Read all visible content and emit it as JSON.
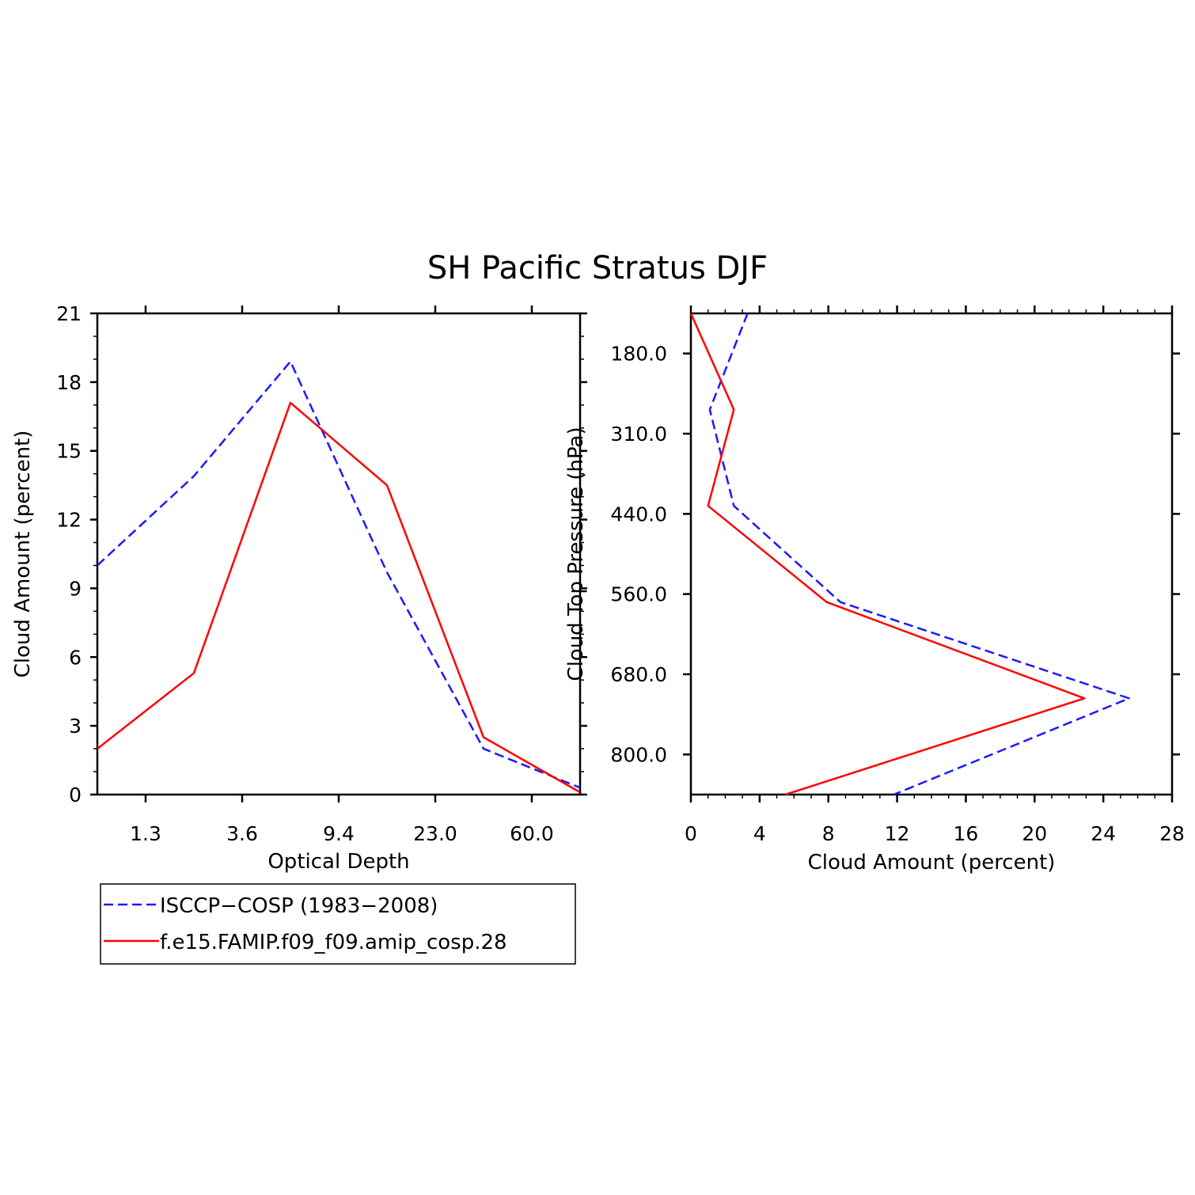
{
  "title": "SH Pacific Stratus DJF",
  "colors": {
    "obs": "#1a1aff",
    "model": "#ff0000",
    "axis": "#000000"
  },
  "chart_data": [
    {
      "type": "line",
      "xlabel": "Optical Depth",
      "ylabel": "Cloud Amount (percent)",
      "x_tick_labels": [
        "1.3",
        "3.6",
        "9.4",
        "23.0",
        "60.0"
      ],
      "ylim": [
        0,
        21
      ],
      "y_ticks": [
        "0",
        "3",
        "6",
        "9",
        "12",
        "15",
        "18",
        "21"
      ],
      "series": [
        {
          "name": "ISCCP-COSP (1983-2008)",
          "style": "dashed",
          "values": [
            10.0,
            13.9,
            18.9,
            9.7,
            2.0,
            0.3
          ]
        },
        {
          "name": "f.e15.FAMIP.f09_f09.amip_cosp.28",
          "style": "solid",
          "values": [
            2.0,
            5.3,
            17.1,
            13.5,
            2.5,
            0.1
          ]
        }
      ]
    },
    {
      "type": "line",
      "xlabel": "Cloud Amount (percent)",
      "ylabel": "Cloud Top Pressure (hPa)",
      "xlim": [
        0,
        28
      ],
      "x_ticks": [
        "0",
        "4",
        "8",
        "12",
        "16",
        "20",
        "24",
        "28"
      ],
      "y_tick_labels": [
        "180.0",
        "310.0",
        "440.0",
        "560.0",
        "680.0",
        "800.0"
      ],
      "series": [
        {
          "name": "ISCCP-COSP (1983-2008)",
          "style": "dashed",
          "values": [
            3.3,
            1.1,
            2.5,
            8.7,
            25.5,
            11.8
          ]
        },
        {
          "name": "f.e15.FAMIP.f09_f09.amip_cosp.28",
          "style": "solid",
          "values": [
            0.0,
            2.5,
            1.0,
            7.9,
            22.9,
            5.5
          ]
        }
      ]
    }
  ],
  "legend": {
    "entries": [
      "ISCCP−COSP (1983−2008)",
      "f.e15.FAMIP.f09_f09.amip_cosp.28"
    ]
  }
}
